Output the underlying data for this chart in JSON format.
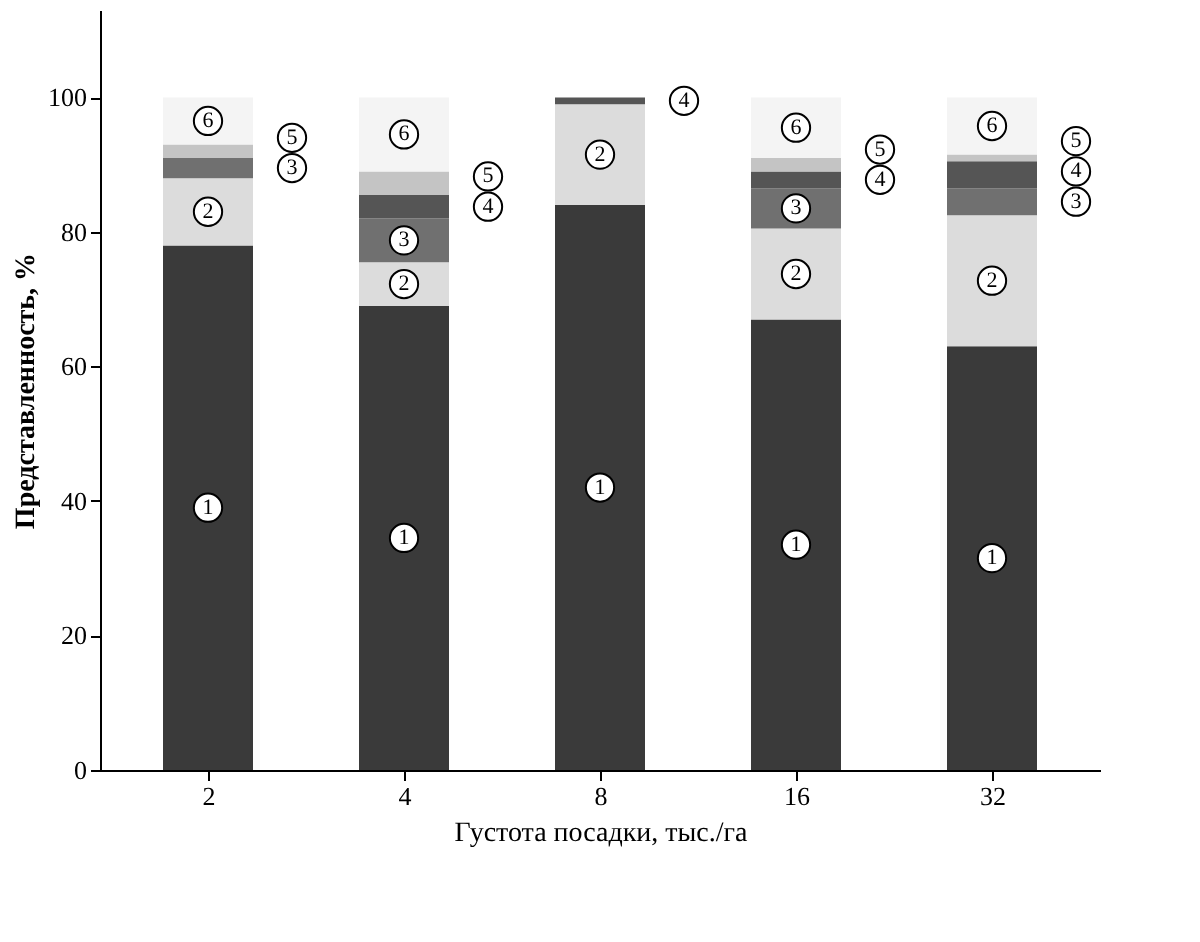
{
  "chart_data": {
    "type": "bar",
    "stacked": true,
    "xlabel": "Густота посадки, тыс./га",
    "ylabel": "Представленность, %",
    "categories": [
      "2",
      "4",
      "8",
      "16",
      "32"
    ],
    "series": [
      {
        "name": "1",
        "color": "#3a3a3a",
        "values": [
          78,
          69,
          84,
          67,
          63
        ]
      },
      {
        "name": "2",
        "color": "#dcdcdc",
        "values": [
          10,
          6.5,
          15,
          13.5,
          19.5
        ]
      },
      {
        "name": "3",
        "color": "#707070",
        "values": [
          3,
          6.5,
          0,
          6,
          4
        ]
      },
      {
        "name": "4",
        "color": "#555555",
        "values": [
          0,
          3.5,
          1,
          2.5,
          4
        ]
      },
      {
        "name": "5",
        "color": "#c4c4c4",
        "values": [
          2,
          3.5,
          0,
          2,
          1
        ]
      },
      {
        "name": "6",
        "color": "#f4f4f4",
        "values": [
          7,
          11,
          0,
          9,
          8.5
        ]
      }
    ],
    "ylim": [
      0,
      113
    ],
    "yticks": [
      0,
      20,
      40,
      60,
      80,
      100
    ],
    "grid": false,
    "legend": false
  }
}
